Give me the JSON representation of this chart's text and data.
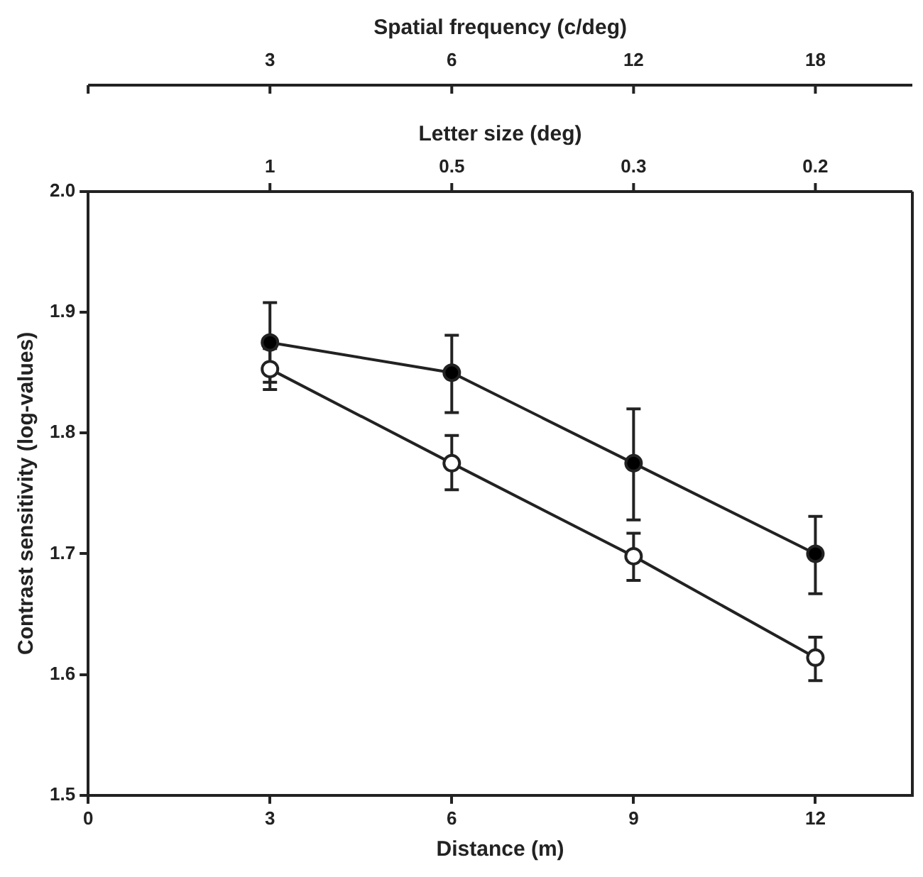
{
  "chart_data": {
    "type": "line",
    "xlabel": "Distance (m)",
    "ylabel": "Contrast sensitivity (log-values)",
    "xlim": [
      0,
      13.6
    ],
    "xticks": [
      0,
      3,
      6,
      9,
      12
    ],
    "annotations": [
      "Spatial frequency (c/deg)",
      {
        "text": "3",
        "x": 3
      },
      {
        "text": "6",
        "x": 6
      },
      {
        "text": "12",
        "x": 9
      },
      {
        "text": "18",
        "x": 12
      },
      "Letter size (deg)",
      {
        "text": "1",
        "x": 3
      },
      {
        "text": "0.5",
        "x": 6
      },
      {
        "text": "0.3",
        "x": 9
      },
      {
        "text": "0.2",
        "x": 12
      }
    ],
    "ylim": [
      1.5,
      2.0
    ],
    "yticks": [
      1.5,
      1.6,
      1.7,
      1.8,
      1.9,
      {
        "value": 2,
        "label": "2.0"
      }
    ],
    "grid": false,
    "legend": false,
    "marker": "circle",
    "line_style": "solid",
    "series": [
      {
        "color": "#000000",
        "x": [
          3,
          6,
          9,
          12
        ],
        "values": [
          1.875,
          1.85,
          1.775,
          1.7
        ],
        "errors": [
          [
            1.842,
            1.908
          ],
          [
            1.817,
            1.881
          ],
          [
            1.728,
            1.82
          ],
          [
            1.667,
            1.731
          ]
        ]
      },
      {
        "color": "#ffffff",
        "x": [
          3,
          6,
          9,
          12
        ],
        "values": [
          1.853,
          1.775,
          1.698,
          1.614
        ],
        "errors": [
          [
            1.836,
            1.87
          ],
          [
            1.753,
            1.798
          ],
          [
            1.678,
            1.717
          ],
          [
            1.595,
            1.631
          ]
        ]
      }
    ]
  }
}
